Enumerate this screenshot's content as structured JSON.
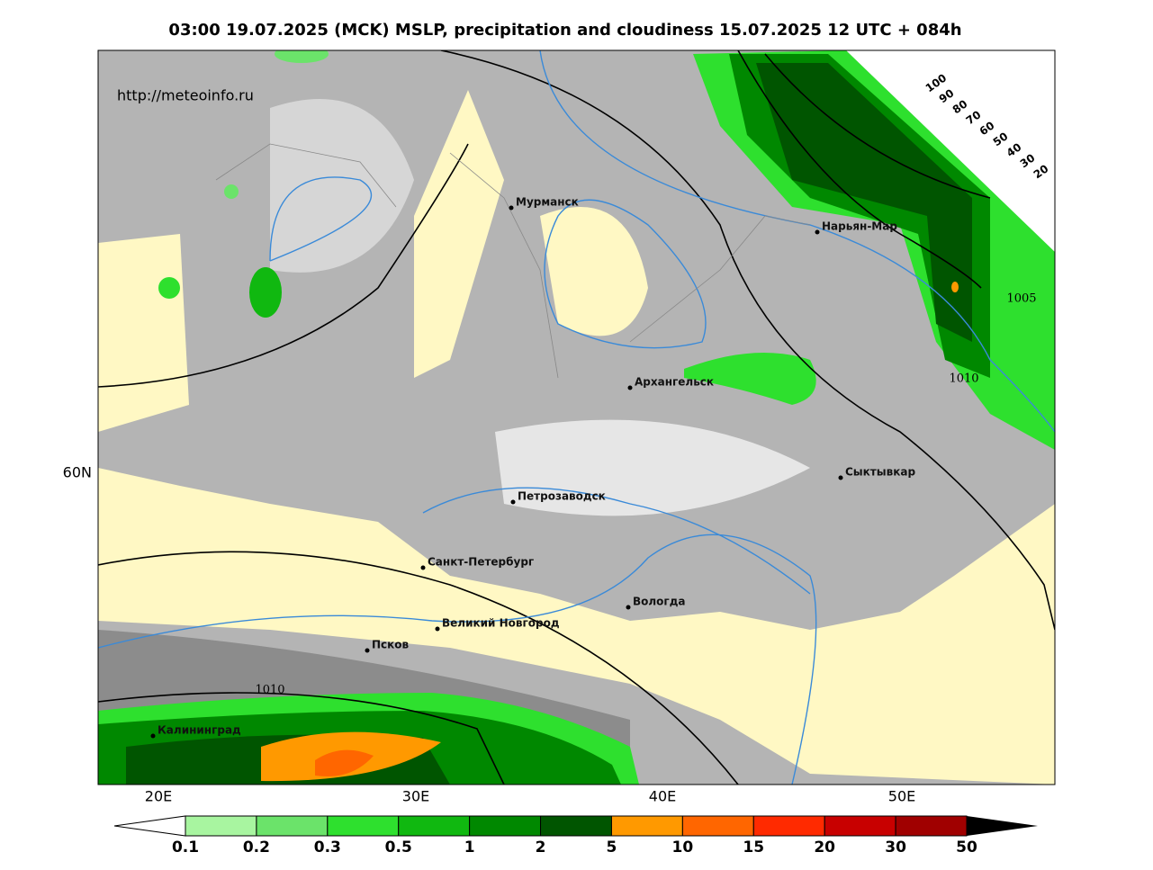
{
  "header": {
    "title": "03:00 19.07.2025 (MCK) MSLP, precipitation and cloudiness 15.07.2025 12 UTC + 084h"
  },
  "map": {
    "source": "http://meteoinfo.ru",
    "cities": [
      "Мурманск",
      "Нарьян-Мар",
      "Архангельск",
      "Сыктывкар",
      "Петрозаводск",
      "Санкт-Петербург",
      "Вологда",
      "Великий Новгород",
      "Псков",
      "Калининград"
    ],
    "isobar_labels": [
      "1005",
      "1010",
      "1010"
    ],
    "lon_labels": [
      "20E",
      "30E",
      "40E",
      "50E"
    ],
    "lat_labels": [
      "60N"
    ],
    "cloud_scale": [
      100,
      90,
      80,
      70,
      60,
      50,
      40,
      30,
      20
    ]
  },
  "colorbar": {
    "ticks": [
      0.1,
      0.2,
      0.3,
      0.5,
      1,
      2,
      5,
      10,
      15,
      20,
      30,
      50
    ],
    "colors": [
      "#a8f5a0",
      "#6be36a",
      "#2ee02e",
      "#10b810",
      "#008800",
      "#005500",
      "#ff9900",
      "#ff6600",
      "#ff2a00",
      "#c80000",
      "#a00000"
    ]
  }
}
